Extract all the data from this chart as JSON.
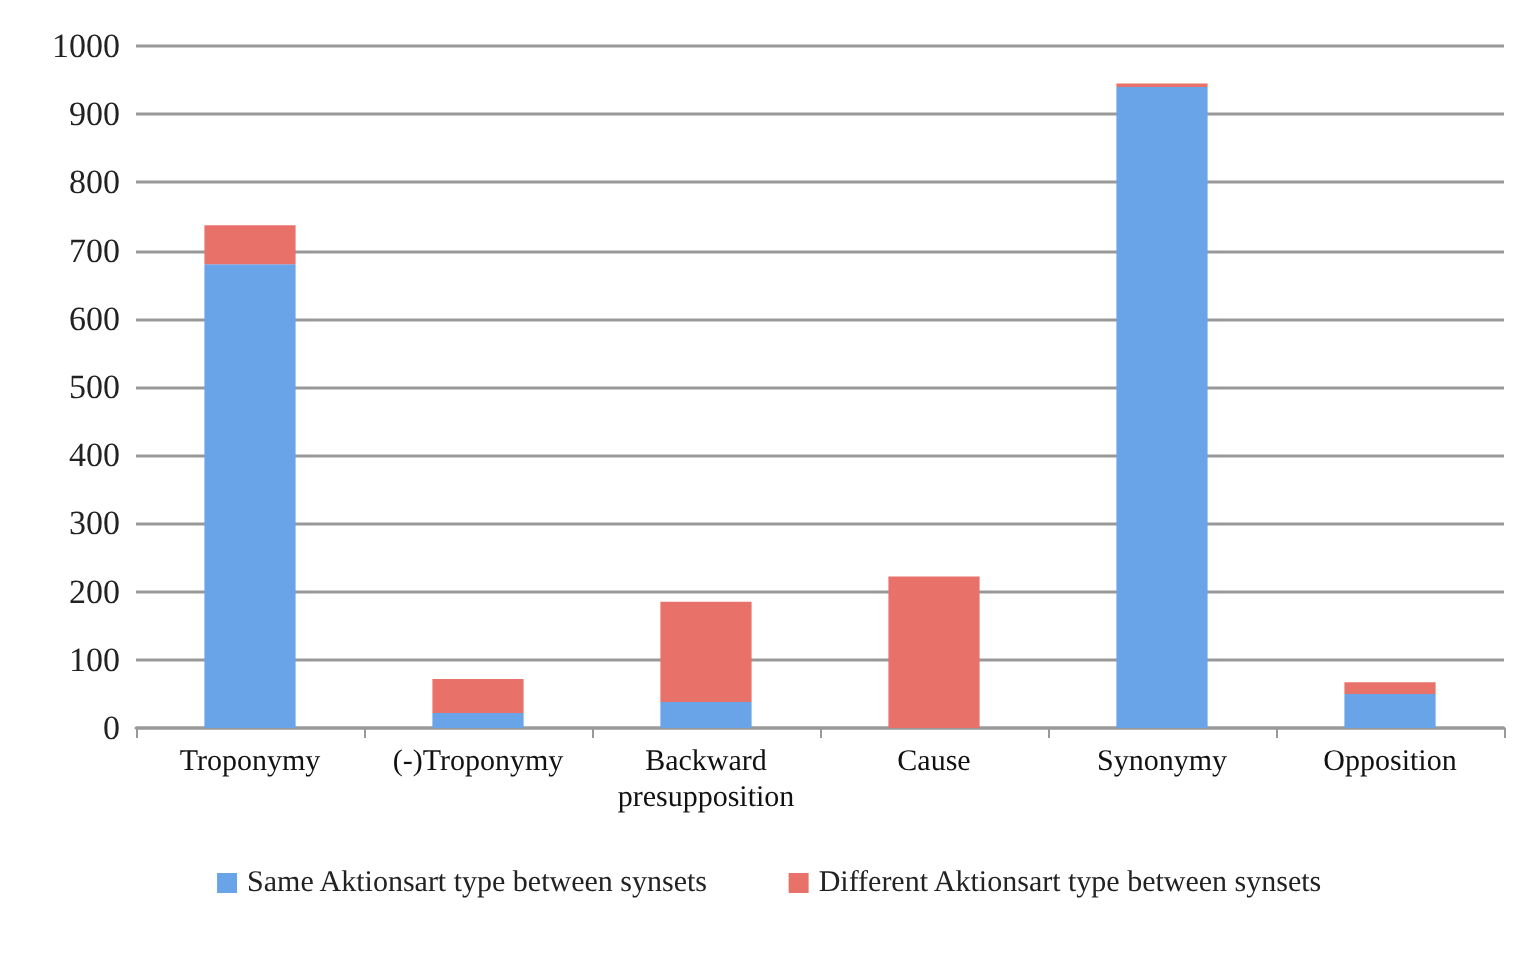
{
  "chart_data": {
    "type": "bar",
    "stacked": true,
    "categories": [
      "Troponymy",
      "(-)Troponymy",
      "Backward\npresupposition",
      "Cause",
      "Synonymy",
      "Opposition"
    ],
    "series": [
      {
        "name": "Same Aktionsart type between synsets",
        "color": "#6aa4e8",
        "values": [
          680,
          22,
          38,
          0,
          940,
          50
        ]
      },
      {
        "name": "Different Aktionsart type between synsets",
        "color": "#e8726a",
        "values": [
          57,
          50,
          147,
          222,
          5,
          17
        ]
      }
    ],
    "ylim": [
      0,
      1000
    ],
    "yticks": [
      0,
      100,
      200,
      300,
      400,
      500,
      600,
      700,
      800,
      900,
      1000
    ],
    "grid": "y",
    "legend": "bottom"
  }
}
